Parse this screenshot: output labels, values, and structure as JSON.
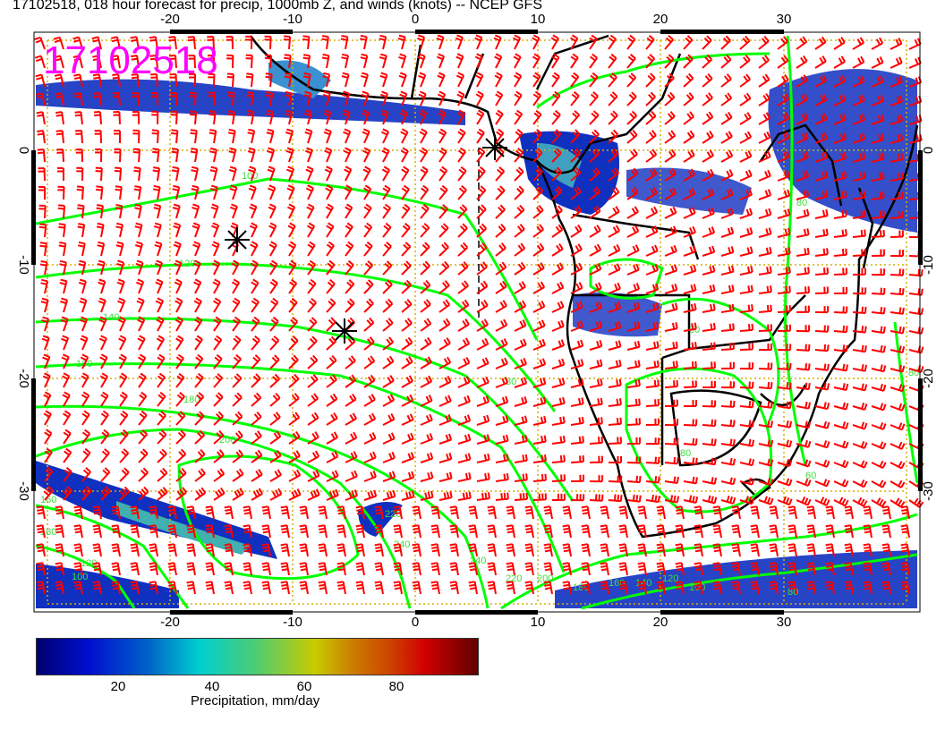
{
  "title": "17102518, 018 hour forecast for precip, 1000mb Z, and winds (knots) -- NCEP GFS",
  "date_stamp": "17102518",
  "map": {
    "lon_ticks": [
      "-20",
      "-10",
      "0",
      "10",
      "20",
      "30"
    ],
    "lat_ticks": [
      "0",
      "-10",
      "-20",
      "-30"
    ],
    "contour_color": "#00ff00",
    "wind_barb_color": "#ff0000",
    "coastline_color": "#000000",
    "contour_labels": [
      "100",
      "120",
      "140",
      "160",
      "180",
      "200",
      "160",
      "180",
      "120",
      "100",
      "80",
      "60",
      "80",
      "60",
      "80",
      "80",
      "220",
      "240",
      "240",
      "220",
      "200",
      "180",
      "160",
      "140",
      "120",
      "100",
      "80"
    ]
  },
  "colorbar": {
    "labels": [
      "20",
      "40",
      "60",
      "80"
    ],
    "title": "Precipitation, mm/day",
    "colors": [
      "#000070",
      "#0010d0",
      "#00d0d0",
      "#c8cc00",
      "#d00000",
      "#600000"
    ]
  }
}
